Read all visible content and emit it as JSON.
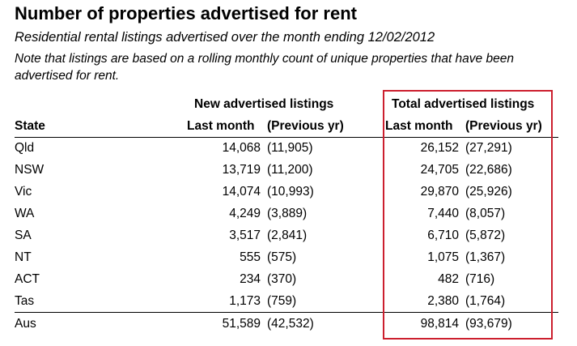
{
  "title": "Number of properties advertised for rent",
  "subtitle": "Residential rental listings advertised over the month ending 12/02/2012",
  "note": "Note that listings are based on a rolling monthly count of unique properties that have been advertised for rent.",
  "chart_data": {
    "type": "table",
    "group_headers": [
      "New advertised listings",
      "Total advertised listings"
    ],
    "columns": [
      "State",
      "Last month",
      "(Previous yr)",
      "Last month",
      "(Previous yr)"
    ],
    "rows": [
      {
        "state": "Qld",
        "new_last": "14,068",
        "new_prev": "(11,905)",
        "total_last": "26,152",
        "total_prev": "(27,291)"
      },
      {
        "state": "NSW",
        "new_last": "13,719",
        "new_prev": "(11,200)",
        "total_last": "24,705",
        "total_prev": "(22,686)"
      },
      {
        "state": "Vic",
        "new_last": "14,074",
        "new_prev": "(10,993)",
        "total_last": "29,870",
        "total_prev": "(25,926)"
      },
      {
        "state": "WA",
        "new_last": "4,249",
        "new_prev": "(3,889)",
        "total_last": "7,440",
        "total_prev": "(8,057)"
      },
      {
        "state": "SA",
        "new_last": "3,517",
        "new_prev": "(2,841)",
        "total_last": "6,710",
        "total_prev": "(5,872)"
      },
      {
        "state": "NT",
        "new_last": "555",
        "new_prev": "(575)",
        "total_last": "1,075",
        "total_prev": "(1,367)"
      },
      {
        "state": "ACT",
        "new_last": "234",
        "new_prev": "(370)",
        "total_last": "482",
        "total_prev": "(716)"
      },
      {
        "state": "Tas",
        "new_last": "1,173",
        "new_prev": "(759)",
        "total_last": "2,380",
        "total_prev": "(1,764)"
      },
      {
        "state": "Aus",
        "new_last": "51,589",
        "new_prev": "(42,532)",
        "total_last": "98,814",
        "total_prev": "(93,679)"
      }
    ],
    "highlight": {
      "column_group": "Total advertised listings",
      "color": "#cc1f2e"
    }
  }
}
